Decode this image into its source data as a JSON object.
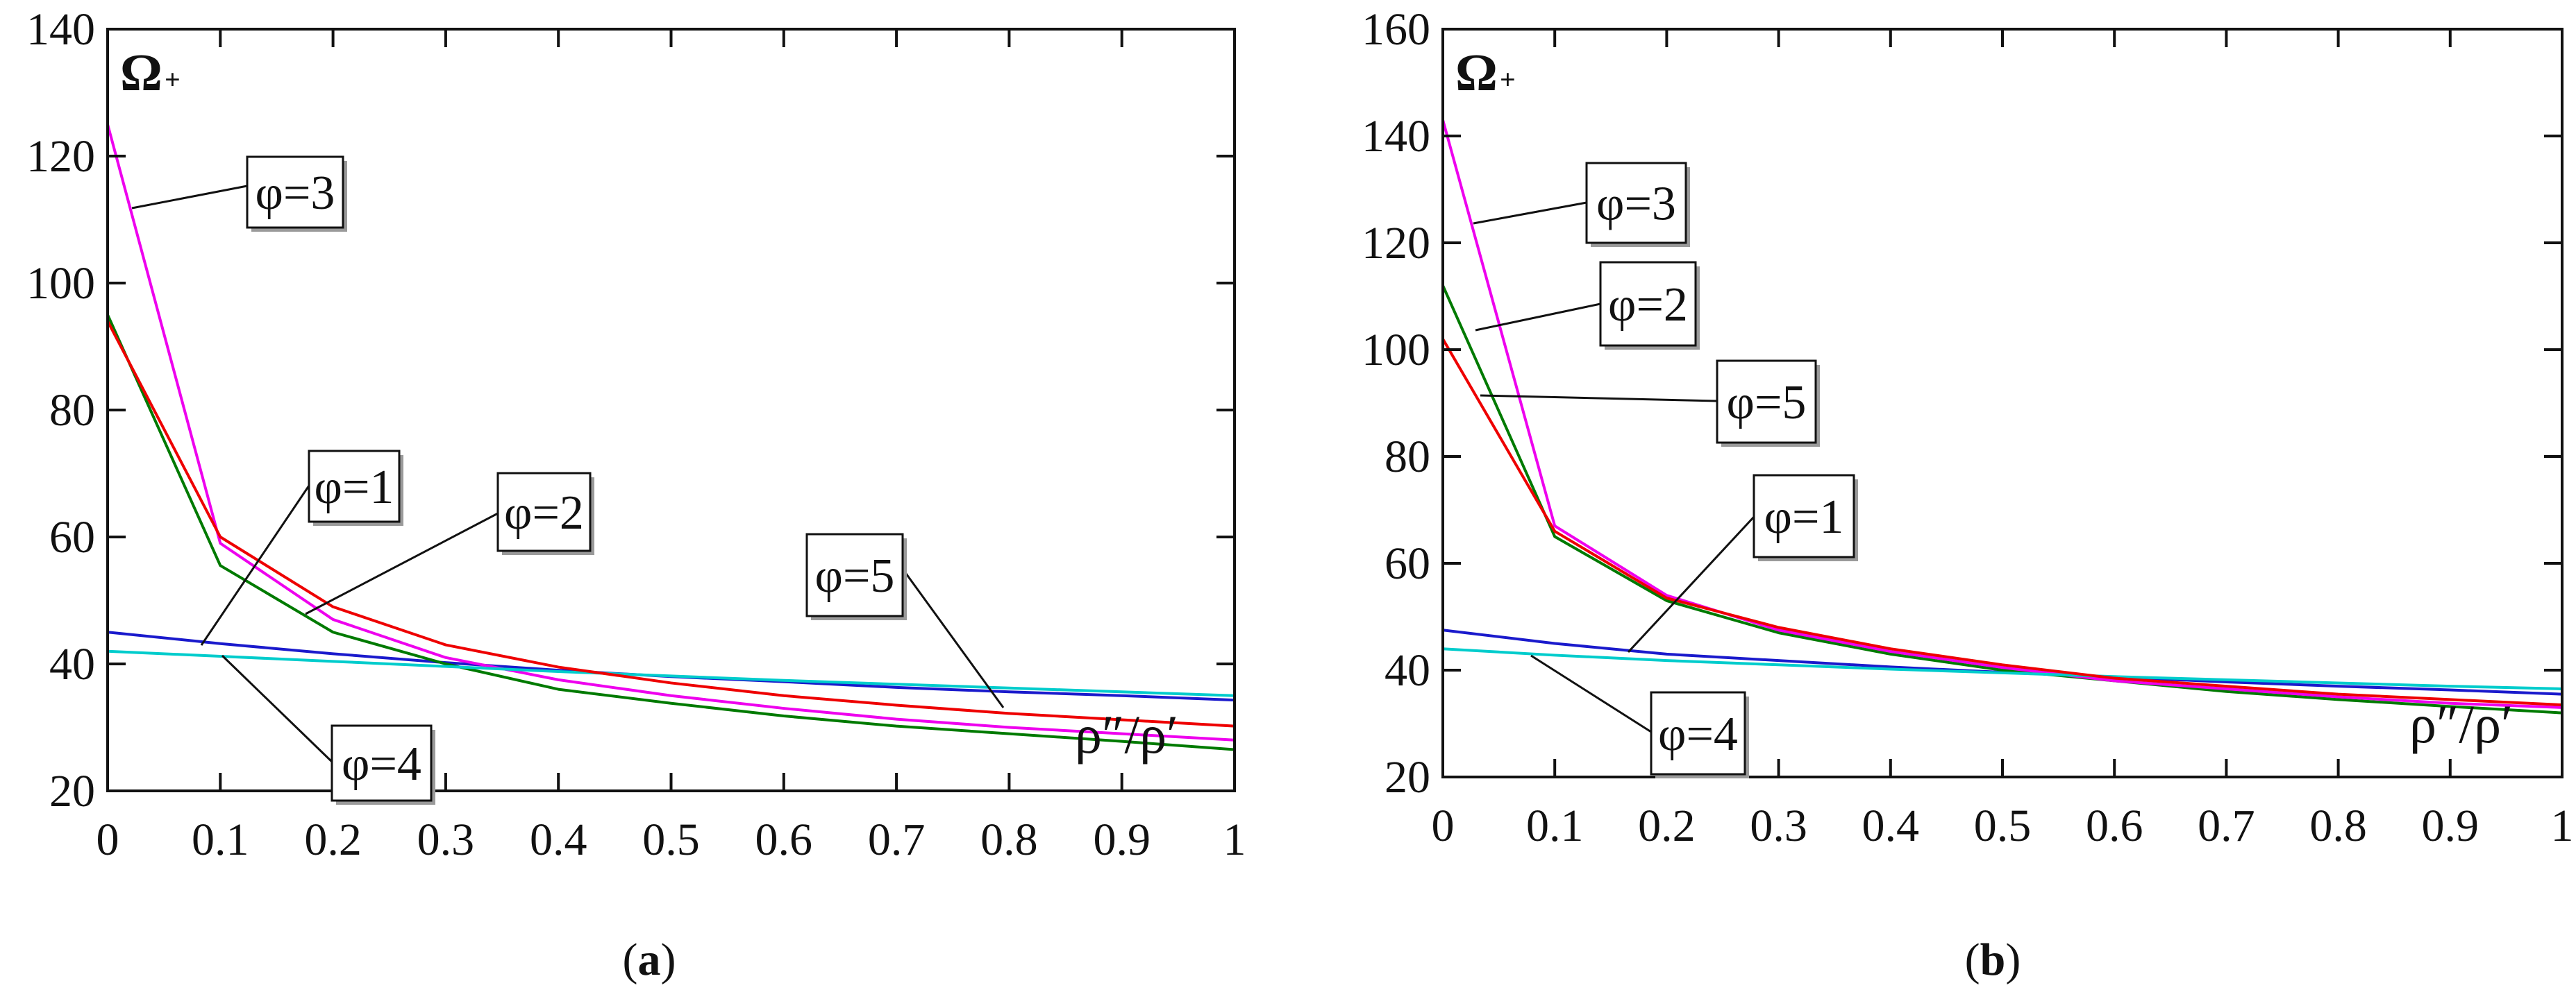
{
  "chart_data": [
    {
      "type": "line",
      "panel": "a",
      "caption_open": "(",
      "caption_letter": "a",
      "caption_close": ")",
      "ylabel": "Ω",
      "ylabel_sub": "+",
      "xlabel": "ρ″/ρ′",
      "xlim": [
        0,
        1
      ],
      "ylim": [
        20,
        140
      ],
      "xticks": [
        "0",
        "0.1",
        "0.2",
        "0.3",
        "0.4",
        "0.5",
        "0.6",
        "0.7",
        "0.8",
        "0.9",
        "1"
      ],
      "yticks": [
        "20",
        "40",
        "60",
        "80",
        "100",
        "120",
        "140"
      ],
      "x": [
        0,
        0.1,
        0.2,
        0.3,
        0.4,
        0.5,
        0.6,
        0.7,
        0.8,
        0.9,
        1.0
      ],
      "series": [
        {
          "name": "φ=1",
          "color": "#1a1acc",
          "values": [
            45.0,
            43.2,
            41.6,
            40.2,
            39.0,
            38.0,
            37.2,
            36.3,
            35.6,
            35.0,
            34.3
          ]
        },
        {
          "name": "φ=2",
          "color": "#007a00",
          "values": [
            95.0,
            55.5,
            45.0,
            40.0,
            36.0,
            33.8,
            31.8,
            30.2,
            29.0,
            27.8,
            26.5
          ]
        },
        {
          "name": "φ=3",
          "color": "#ee00ee",
          "values": [
            125.0,
            59.0,
            47.0,
            41.0,
            37.5,
            35.0,
            33.0,
            31.3,
            30.0,
            29.0,
            28.0
          ]
        },
        {
          "name": "φ=4",
          "color": "#00cccc",
          "values": [
            42.0,
            41.2,
            40.4,
            39.6,
            38.8,
            38.1,
            37.4,
            36.8,
            36.2,
            35.6,
            35.0
          ]
        },
        {
          "name": "φ=5",
          "color": "#ee0000",
          "values": [
            94.0,
            60.0,
            49.0,
            43.0,
            39.5,
            37.0,
            35.0,
            33.5,
            32.2,
            31.2,
            30.2
          ]
        }
      ],
      "annotations": [
        "φ=3",
        "φ=1",
        "φ=2",
        "φ=5",
        "φ=4"
      ]
    },
    {
      "type": "line",
      "panel": "b",
      "caption_open": "(",
      "caption_letter": "b",
      "caption_close": ")",
      "ylabel": "Ω",
      "ylabel_sub": "+",
      "xlabel": "ρ″/ρ′",
      "xlim": [
        0,
        1
      ],
      "ylim": [
        20,
        160
      ],
      "xticks": [
        "0",
        "0.1",
        "0.2",
        "0.3",
        "0.4",
        "0.5",
        "0.6",
        "0.7",
        "0.8",
        "0.9",
        "1"
      ],
      "yticks": [
        "20",
        "40",
        "60",
        "80",
        "100",
        "120",
        "140",
        "160"
      ],
      "x": [
        0,
        0.1,
        0.2,
        0.3,
        0.4,
        0.5,
        0.6,
        0.7,
        0.8,
        0.9,
        1.0
      ],
      "series": [
        {
          "name": "φ=1",
          "color": "#1a1acc",
          "values": [
            47.5,
            45.0,
            43.0,
            41.8,
            40.6,
            39.6,
            38.7,
            37.8,
            37.0,
            36.3,
            35.5
          ]
        },
        {
          "name": "φ=2",
          "color": "#007a00",
          "values": [
            112.0,
            65.0,
            53.0,
            47.0,
            43.0,
            40.0,
            38.0,
            36.0,
            34.5,
            33.2,
            32.0
          ]
        },
        {
          "name": "φ=3",
          "color": "#ee00ee",
          "values": [
            143.0,
            67.0,
            54.0,
            47.5,
            43.5,
            40.5,
            38.0,
            36.5,
            35.0,
            33.8,
            33.0
          ]
        },
        {
          "name": "φ=4",
          "color": "#00cccc",
          "values": [
            44.0,
            42.8,
            41.8,
            41.0,
            40.2,
            39.5,
            38.8,
            38.2,
            37.6,
            37.0,
            36.5
          ]
        },
        {
          "name": "φ=5",
          "color": "#ee0000",
          "values": [
            102.0,
            66.0,
            53.5,
            48.0,
            44.0,
            41.0,
            38.5,
            37.0,
            35.5,
            34.5,
            33.5
          ]
        }
      ],
      "annotations": [
        "φ=3",
        "φ=2",
        "φ=5",
        "φ=1",
        "φ=4"
      ]
    }
  ]
}
